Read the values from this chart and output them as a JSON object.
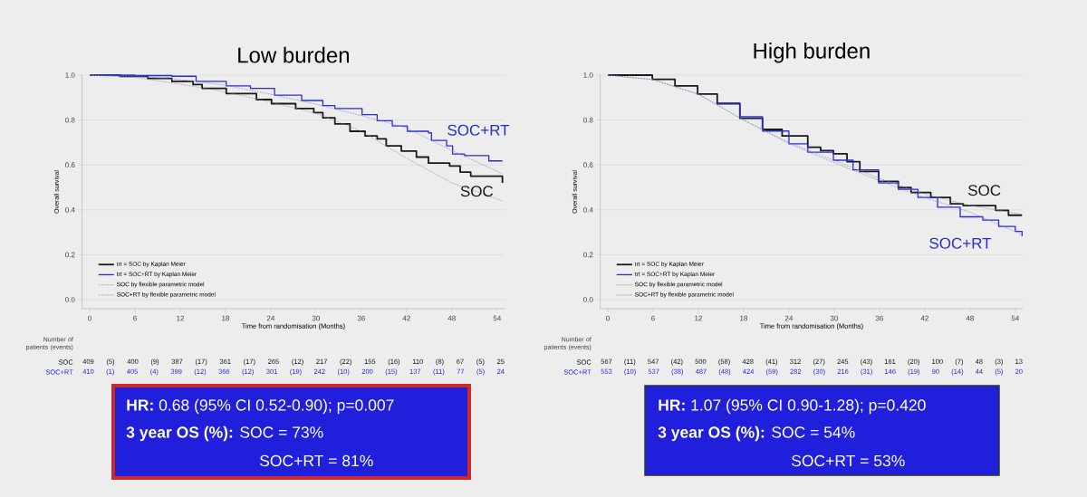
{
  "chart_data": [
    {
      "type": "step",
      "title": "Low burden",
      "xlabel": "Time from randomisation (Months)",
      "ylabel": "Overall survival",
      "xlim": [
        -1,
        55
      ],
      "ylim": [
        -0.04,
        1.0
      ],
      "xticks": [
        0,
        6,
        12,
        18,
        24,
        30,
        36,
        42,
        48,
        54
      ],
      "yticks": [
        {
          "value": 0,
          "label": "0.0"
        },
        {
          "value": 0.2,
          "label": "0.2"
        },
        {
          "value": 0.4,
          "label": "0.4"
        },
        {
          "value": 0.6,
          "label": "0.6"
        },
        {
          "value": 0.8,
          "label": "0.8"
        },
        {
          "value": 1.0,
          "label": "1.0"
        }
      ],
      "grid": "y",
      "legend": "bottom left",
      "marker": "none",
      "series": [
        {
          "name": "trt = SOC by Kaplan Meier",
          "line_style": "solid",
          "color": "#1a1a1a",
          "x": [
            0,
            4,
            7.7,
            10.9,
            13.7,
            14.9,
            18.1,
            22.1,
            24.1,
            27.3,
            29.7,
            30.9,
            32.5,
            34.5,
            36.5,
            38.1,
            39.3,
            41.3,
            43.3,
            44.9,
            47.7,
            49.1,
            50.5,
            54.5,
            54.7
          ],
          "values": [
            1.0,
            0.995,
            0.985,
            0.972,
            0.958,
            0.941,
            0.918,
            0.891,
            0.873,
            0.851,
            0.833,
            0.81,
            0.783,
            0.75,
            0.729,
            0.716,
            0.685,
            0.662,
            0.635,
            0.608,
            0.595,
            0.568,
            0.55,
            0.55,
            0.52
          ]
        },
        {
          "name": "trt = SOC+RT by Kaplan Meier",
          "line_style": "solid",
          "color": "#2b2bd6",
          "x": [
            0,
            6,
            10.9,
            14.1,
            18.1,
            21.3,
            24.5,
            28.1,
            30.9,
            32.5,
            36.1,
            38.1,
            40.1,
            42.1,
            44.9,
            45.3,
            47.3,
            48.1,
            49.7,
            52.7,
            52.9,
            54.7
          ],
          "values": [
            1.0,
            0.998,
            0.995,
            0.972,
            0.952,
            0.941,
            0.911,
            0.887,
            0.864,
            0.851,
            0.824,
            0.797,
            0.774,
            0.75,
            0.743,
            0.709,
            0.685,
            0.649,
            0.642,
            0.642,
            0.618,
            0.618
          ]
        },
        {
          "name": "SOC by flexible parametric model",
          "type": "line",
          "line_style": "dashed",
          "color": "#8c8c8c",
          "x": [
            0,
            6,
            12,
            18,
            24,
            30,
            36,
            42,
            48,
            54.7
          ],
          "values": [
            1.0,
            0.99,
            0.96,
            0.925,
            0.88,
            0.83,
            0.75,
            0.63,
            0.52,
            0.44
          ]
        },
        {
          "name": "SOC+RT by flexible parametric model",
          "type": "line",
          "line_style": "dashed",
          "color": "#7b7bd8",
          "x": [
            0,
            6,
            12,
            18,
            24,
            30,
            36,
            42,
            48,
            54.7
          ],
          "values": [
            1.0,
            0.995,
            0.98,
            0.955,
            0.915,
            0.87,
            0.82,
            0.765,
            0.664,
            0.561
          ]
        }
      ],
      "annotations": [
        "Number of patients (events)",
        "SOC",
        "409 (5) 400 (9) 387 (17) 361 (17) 265 (12) 217 (22) 155 (16) 110 (8) 67 (5) 25",
        "SOC+RT",
        "410 (1) 405 (4) 399 (12) 366 (12) 301 (19) 242 (10) 200 (15) 137 (11) 77 (5) 24",
        "**HR:** 0.68 (95% CI 0.52-0.90); p=0.007",
        "**3 year OS (%):** SOC = 73%",
        "SOC+RT = 81%",
        "SOC",
        "SOC+RT"
      ]
    },
    {
      "type": "step",
      "title": "High burden",
      "xlabel": "Time from randomisation (Months)",
      "ylabel": "Overall survival",
      "xlim": [
        -1,
        55
      ],
      "ylim": [
        -0.04,
        1.0
      ],
      "xticks": [
        0,
        6,
        12,
        18,
        24,
        30,
        36,
        42,
        48,
        54
      ],
      "yticks": [
        {
          "value": 0,
          "label": "0.0"
        },
        {
          "value": 0.2,
          "label": "0.2"
        },
        {
          "value": 0.4,
          "label": "0.4"
        },
        {
          "value": 0.6,
          "label": "0.6"
        },
        {
          "value": 0.8,
          "label": "0.8"
        },
        {
          "value": 1.0,
          "label": "1.0"
        }
      ],
      "grid": "y",
      "legend": "bottom left",
      "marker": "none",
      "series": [
        {
          "name": "trt = SOC by Kaplan Meier",
          "line_style": "solid",
          "color": "#1a1a1a",
          "x": [
            0,
            2.9,
            5.9,
            8.9,
            11.9,
            14.5,
            17.5,
            20.5,
            23.1,
            26.5,
            28.2,
            29.9,
            31.7,
            33.4,
            35.9,
            38.5,
            40.2,
            42.8,
            45.4,
            47.1,
            50.1,
            51.4,
            53.1,
            54.9
          ],
          "values": [
            1.0,
            1.0,
            0.981,
            0.952,
            0.916,
            0.873,
            0.808,
            0.758,
            0.729,
            0.679,
            0.664,
            0.65,
            0.614,
            0.571,
            0.527,
            0.499,
            0.477,
            0.455,
            0.427,
            0.419,
            0.419,
            0.398,
            0.376,
            0.376
          ]
        },
        {
          "name": "trt = SOC+RT by Kaplan Meier",
          "line_style": "solid",
          "color": "#2b2bd6",
          "x": [
            14.5,
            17.5,
            20.5,
            24.0,
            26.5,
            29.9,
            32.5,
            35.9,
            38.5,
            41.1,
            43.7,
            46.7,
            49.7,
            51.8,
            54.0,
            54.9
          ],
          "values": [
            0.875,
            0.815,
            0.751,
            0.694,
            0.657,
            0.621,
            0.578,
            0.52,
            0.491,
            0.455,
            0.412,
            0.369,
            0.354,
            0.326,
            0.304,
            0.282
          ]
        },
        {
          "name": "SOC by flexible parametric model",
          "type": "line",
          "line_style": "dashed",
          "color": "#8c8c8c",
          "x": [
            0,
            6,
            12,
            18,
            24,
            30,
            36,
            42,
            48,
            54.9
          ],
          "values": [
            1.0,
            0.98,
            0.915,
            0.8,
            0.7,
            0.62,
            0.54,
            0.47,
            0.42,
            0.38
          ]
        },
        {
          "name": "SOC+RT by flexible parametric model",
          "type": "line",
          "line_style": "dashed",
          "color": "#7b7bd8",
          "x": [
            0,
            6,
            12,
            18,
            24,
            30,
            36,
            42,
            48,
            54.9
          ],
          "values": [
            1.0,
            0.98,
            0.915,
            0.8,
            0.695,
            0.61,
            0.53,
            0.455,
            0.39,
            0.29
          ]
        }
      ],
      "annotations": [
        "Number of patients (events)",
        "SOC",
        "567 (11) 547 (42) 500 (58) 428 (41) 312 (27) 245 (43) 161 (20) 100 (7) 48 (3) 13",
        "SOC+RT",
        "553 (10) 537 (38) 487 (48) 424 (59) 282 (30) 216 (31) 146 (19) 90 (14) 44 (5) 20",
        "**HR:** 1.07 (95% CI 0.90-1.28); p=0.420",
        "**3 year OS (%):** SOC = 54%",
        "SOC+RT = 53%",
        "SOC",
        "SOC+RT"
      ]
    }
  ]
}
